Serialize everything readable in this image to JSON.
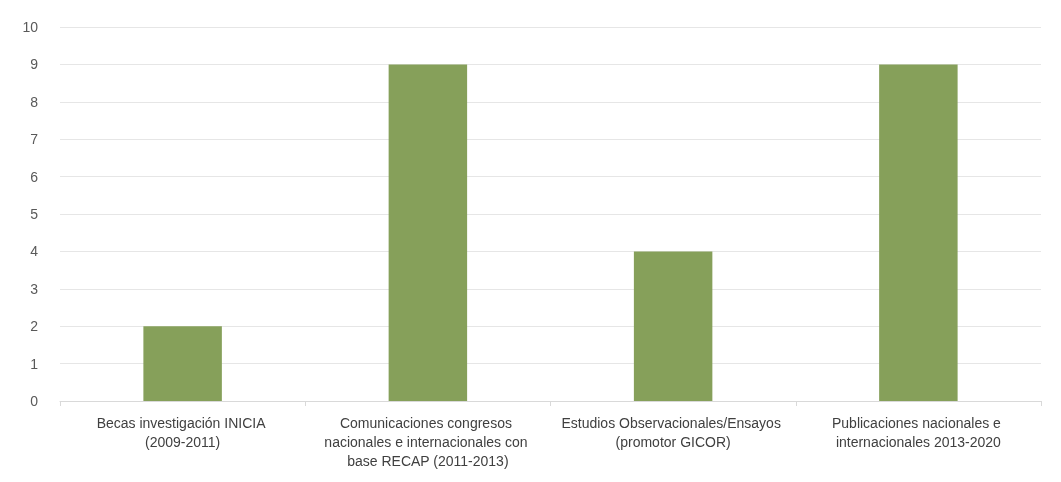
{
  "chart_data": {
    "type": "bar",
    "categories": [
      "Becas investigación INICIA (2009-2011)",
      "Comunicaciones congresos nacionales e internacionales con base RECAP (2011-2013)",
      "Estudios Observacionales/Ensayos (promotor GICOR)",
      "Publicaciones nacionales e internacionales 2013-2020"
    ],
    "values": [
      2,
      9,
      4,
      9
    ],
    "color": "#86a05a",
    "ylim": [
      0,
      10
    ],
    "yticks": [
      0,
      1,
      2,
      3,
      4,
      5,
      6,
      7,
      8,
      9,
      10
    ],
    "grid": "y"
  }
}
